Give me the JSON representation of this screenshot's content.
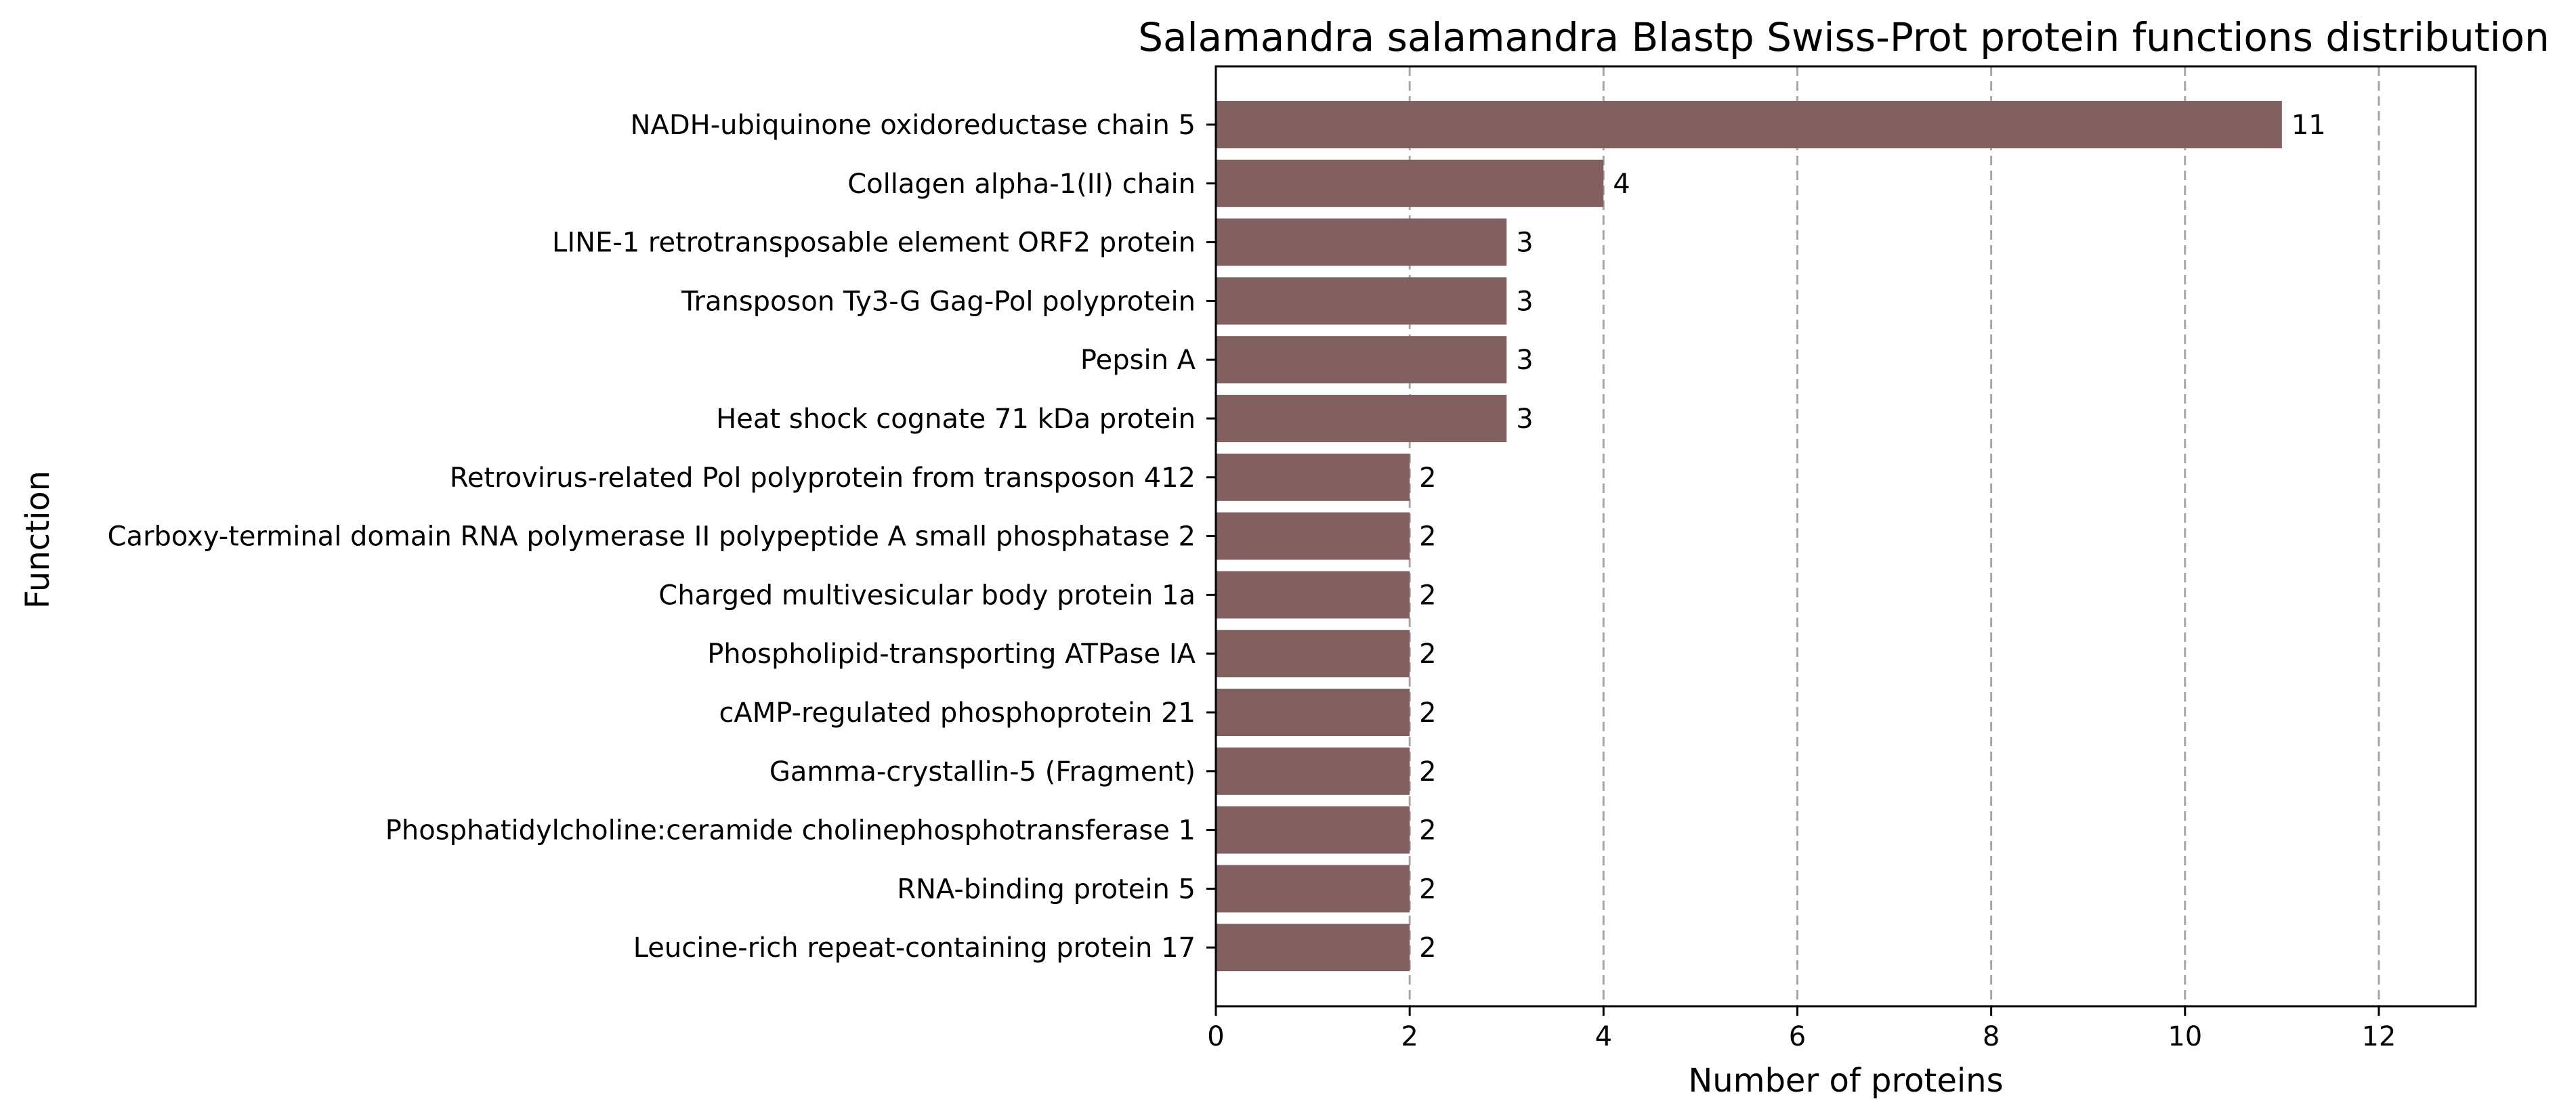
{
  "chart_data": {
    "type": "bar",
    "orientation": "horizontal",
    "title": "Salamandra salamandra Blastp Swiss-Prot protein functions distribution",
    "xlabel": "Number of proteins",
    "ylabel": "Function",
    "categories": [
      "NADH-ubiquinone oxidoreductase chain 5",
      "Collagen alpha-1(II) chain",
      "LINE-1 retrotransposable element ORF2 protein",
      "Transposon Ty3-G Gag-Pol polyprotein",
      "Pepsin A",
      "Heat shock cognate 71 kDa protein",
      "Retrovirus-related Pol polyprotein from transposon 412",
      "Carboxy-terminal domain RNA polymerase II polypeptide A small phosphatase 2",
      "Charged multivesicular body protein 1a",
      "Phospholipid-transporting ATPase IA",
      "cAMP-regulated phosphoprotein 21",
      "Gamma-crystallin-5 (Fragment)",
      "Phosphatidylcholine:ceramide cholinephosphotransferase 1",
      "RNA-binding protein 5",
      "Leucine-rich repeat-containing protein 17"
    ],
    "values": [
      11,
      4,
      3,
      3,
      3,
      3,
      2,
      2,
      2,
      2,
      2,
      2,
      2,
      2,
      2
    ],
    "data_labels": [
      "11",
      "4",
      "3",
      "3",
      "3",
      "3",
      "2",
      "2",
      "2",
      "2",
      "2",
      "2",
      "2",
      "2",
      "2"
    ],
    "xlim": [
      0,
      13
    ],
    "xticks": [
      0,
      2,
      4,
      6,
      8,
      10,
      12
    ],
    "xtick_labels": [
      "0",
      "2",
      "4",
      "6",
      "8",
      "10",
      "12"
    ],
    "grid": "x-axis vertical dashed",
    "bar_color": "#836060",
    "grid_color": "#a6a6a6"
  }
}
